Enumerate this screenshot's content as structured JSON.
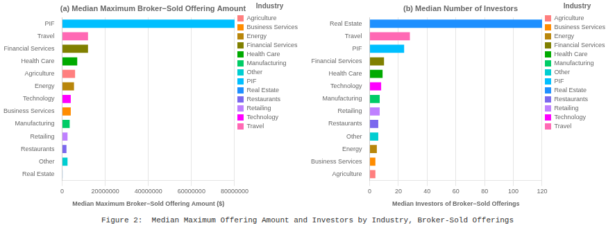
{
  "chart_data": [
    {
      "type": "bar",
      "orientation": "horizontal",
      "title": "(a) Median Maximum Broker−Sold Offering Amount",
      "x_label": "Median Maximum Broker−Sold Offering Amount ($)",
      "categories": [
        "PIF",
        "Travel",
        "Financial Services",
        "Health Care",
        "Agriculture",
        "Energy",
        "Technology",
        "Business Services",
        "Manufacturing",
        "Retailing",
        "Restaurants",
        "Other",
        "Real Estate"
      ],
      "series": [
        {
          "name": "Agriculture",
          "color": "#FF7F7F",
          "values": [
            null,
            null,
            null,
            null,
            6000000,
            null,
            null,
            null,
            null,
            null,
            null,
            null,
            null
          ]
        },
        {
          "name": "Business Services",
          "color": "#FF8C00",
          "values": [
            null,
            null,
            null,
            null,
            null,
            null,
            null,
            4000000,
            null,
            null,
            null,
            null,
            null
          ]
        },
        {
          "name": "Energy",
          "color": "#B8860B",
          "values": [
            null,
            null,
            null,
            null,
            null,
            5500000,
            null,
            null,
            null,
            null,
            null,
            null,
            null
          ]
        },
        {
          "name": "Financial Services",
          "color": "#808000",
          "values": [
            null,
            null,
            12000000,
            null,
            null,
            null,
            null,
            null,
            null,
            null,
            null,
            null,
            null
          ]
        },
        {
          "name": "Health Care",
          "color": "#00AA00",
          "values": [
            null,
            null,
            null,
            7000000,
            null,
            null,
            null,
            null,
            null,
            null,
            null,
            null,
            null
          ]
        },
        {
          "name": "Manufacturing",
          "color": "#00CC66",
          "values": [
            null,
            null,
            null,
            null,
            null,
            null,
            null,
            null,
            3500000,
            null,
            null,
            null,
            null
          ]
        },
        {
          "name": "Other",
          "color": "#00CED1",
          "values": [
            null,
            null,
            null,
            null,
            null,
            null,
            null,
            null,
            null,
            null,
            null,
            2500000,
            null
          ]
        },
        {
          "name": "PIF",
          "color": "#00BFFF",
          "values": [
            80000000,
            null,
            null,
            null,
            null,
            null,
            null,
            null,
            null,
            null,
            null,
            null,
            null
          ]
        },
        {
          "name": "Real Estate",
          "color": "#1E90FF",
          "values": [
            null,
            null,
            null,
            null,
            null,
            null,
            null,
            null,
            null,
            null,
            null,
            null,
            200000
          ]
        },
        {
          "name": "Restaurants",
          "color": "#7B68EE",
          "values": [
            null,
            null,
            null,
            null,
            null,
            null,
            null,
            null,
            null,
            null,
            2000000,
            null,
            null
          ]
        },
        {
          "name": "Retailing",
          "color": "#BF80FF",
          "values": [
            null,
            null,
            null,
            null,
            null,
            null,
            null,
            null,
            null,
            2500000,
            null,
            null,
            null
          ]
        },
        {
          "name": "Technology",
          "color": "#FF00FF",
          "values": [
            null,
            null,
            null,
            null,
            null,
            null,
            4000000,
            null,
            null,
            null,
            null,
            null,
            null
          ]
        },
        {
          "name": "Travel",
          "color": "#FF69B4",
          "values": [
            null,
            12000000,
            null,
            null,
            null,
            null,
            null,
            null,
            null,
            null,
            null,
            null,
            null
          ]
        }
      ],
      "xlim": [
        0,
        80000000
      ],
      "xticks": [
        0,
        20000000,
        40000000,
        60000000,
        80000000
      ],
      "grid": true,
      "legend": "right",
      "legend_title": "Industry"
    },
    {
      "type": "bar",
      "orientation": "horizontal",
      "title": "(b) Median Number of Investors",
      "x_label": "Median Investors of Broker−Sold Offerings",
      "categories": [
        "Real Estate",
        "Travel",
        "PIF",
        "Financial Services",
        "Health Care",
        "Technology",
        "Manufacturing",
        "Retailing",
        "Restaurants",
        "Other",
        "Energy",
        "Business Services",
        "Agriculture"
      ],
      "series": [
        {
          "name": "Agriculture",
          "color": "#FF7F7F",
          "values": [
            null,
            null,
            null,
            null,
            null,
            null,
            null,
            null,
            null,
            null,
            null,
            null,
            4
          ]
        },
        {
          "name": "Business Services",
          "color": "#FF8C00",
          "values": [
            null,
            null,
            null,
            null,
            null,
            null,
            null,
            null,
            null,
            null,
            null,
            4,
            null
          ]
        },
        {
          "name": "Energy",
          "color": "#B8860B",
          "values": [
            null,
            null,
            null,
            null,
            null,
            null,
            null,
            null,
            null,
            null,
            5,
            null,
            null
          ]
        },
        {
          "name": "Financial Services",
          "color": "#808000",
          "values": [
            null,
            null,
            null,
            10,
            null,
            null,
            null,
            null,
            null,
            null,
            null,
            null,
            null
          ]
        },
        {
          "name": "Health Care",
          "color": "#00AA00",
          "values": [
            null,
            null,
            null,
            null,
            9,
            null,
            null,
            null,
            null,
            null,
            null,
            null,
            null
          ]
        },
        {
          "name": "Manufacturing",
          "color": "#00CC66",
          "values": [
            null,
            null,
            null,
            null,
            null,
            null,
            7,
            null,
            null,
            null,
            null,
            null,
            null
          ]
        },
        {
          "name": "Other",
          "color": "#00CED1",
          "values": [
            null,
            null,
            null,
            null,
            null,
            null,
            null,
            null,
            null,
            6,
            null,
            null,
            null
          ]
        },
        {
          "name": "PIF",
          "color": "#00BFFF",
          "values": [
            null,
            null,
            24,
            null,
            null,
            null,
            null,
            null,
            null,
            null,
            null,
            null,
            null
          ]
        },
        {
          "name": "Real Estate",
          "color": "#1E90FF",
          "values": [
            120,
            null,
            null,
            null,
            null,
            null,
            null,
            null,
            null,
            null,
            null,
            null,
            null
          ]
        },
        {
          "name": "Restaurants",
          "color": "#7B68EE",
          "values": [
            null,
            null,
            null,
            null,
            null,
            null,
            null,
            null,
            6,
            null,
            null,
            null,
            null
          ]
        },
        {
          "name": "Retailing",
          "color": "#BF80FF",
          "values": [
            null,
            null,
            null,
            null,
            null,
            null,
            null,
            7,
            null,
            null,
            null,
            null,
            null
          ]
        },
        {
          "name": "Technology",
          "color": "#FF00FF",
          "values": [
            null,
            null,
            null,
            null,
            null,
            8,
            null,
            null,
            null,
            null,
            null,
            null,
            null
          ]
        },
        {
          "name": "Travel",
          "color": "#FF69B4",
          "values": [
            null,
            28,
            null,
            null,
            null,
            null,
            null,
            null,
            null,
            null,
            null,
            null,
            null
          ]
        }
      ],
      "xlim": [
        0,
        120
      ],
      "xticks": [
        0,
        20,
        40,
        60,
        80,
        100,
        120
      ],
      "grid": true,
      "legend": "right",
      "legend_title": "Industry"
    }
  ],
  "annotations": [
    {
      "text": "Figure 2:  Median Maximum Offering Amount and Investors by Industry, Broker-Sold Offerings"
    }
  ]
}
